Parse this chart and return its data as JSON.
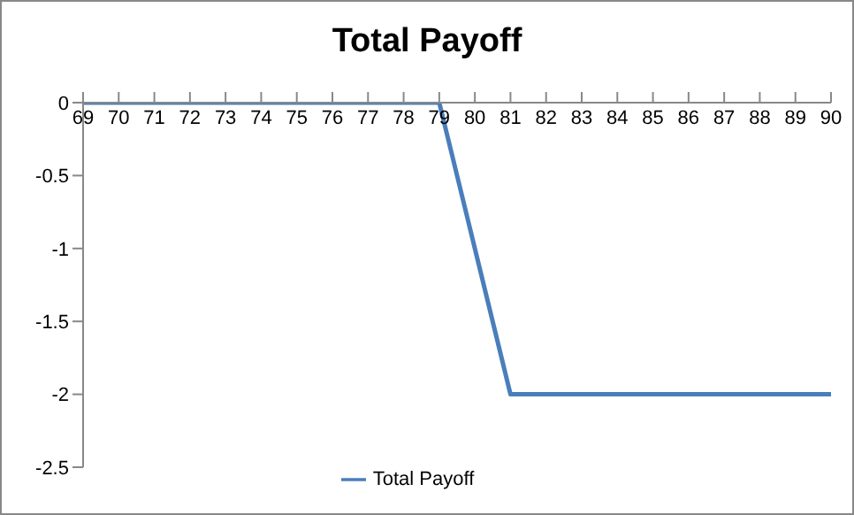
{
  "chart_data": {
    "type": "line",
    "title": "Total Payoff",
    "categories": [
      "69",
      "70",
      "71",
      "72",
      "73",
      "74",
      "75",
      "76",
      "77",
      "78",
      "79",
      "80",
      "81",
      "82",
      "83",
      "84",
      "85",
      "86",
      "87",
      "88",
      "89",
      "90"
    ],
    "series": [
      {
        "name": "Total Payoff",
        "color": "#4a7ebb",
        "values": [
          0,
          0,
          0,
          0,
          0,
          0,
          0,
          0,
          0,
          0,
          0,
          -1,
          -2,
          -2,
          -2,
          -2,
          -2,
          -2,
          -2,
          -2,
          -2,
          -2
        ]
      }
    ],
    "ylim": [
      -2.5,
      0
    ],
    "yticks": [
      -2.5,
      -2,
      -1.5,
      -1,
      -0.5,
      0
    ],
    "legend": "bottom",
    "marker": "none",
    "line_style": "solid"
  }
}
